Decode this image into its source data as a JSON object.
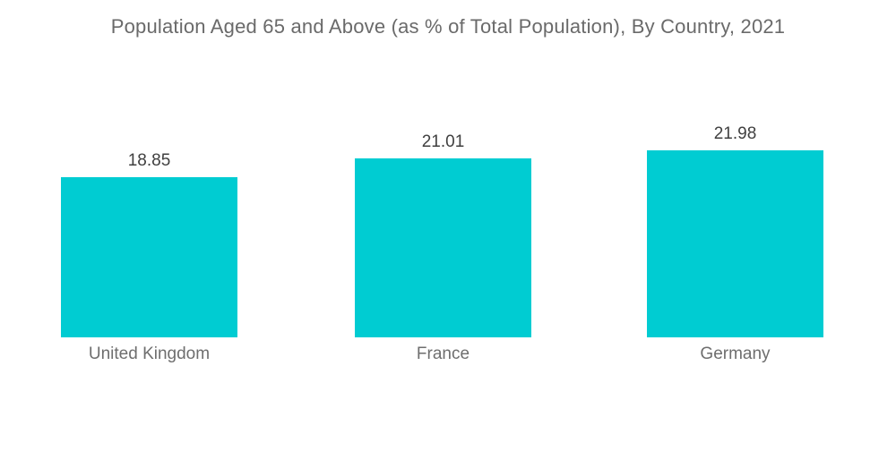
{
  "chart_data": {
    "type": "bar",
    "title": "Population Aged 65 and Above (as % of Total Population), By Country, 2021",
    "categories": [
      "United Kingdom",
      "France",
      "Germany"
    ],
    "values": [
      18.85,
      21.01,
      21.98
    ],
    "value_labels": [
      "18.85",
      "21.01",
      "21.98"
    ],
    "xlabel": "",
    "ylabel": "",
    "ylim": [
      0,
      25
    ],
    "grid": false,
    "legend": false,
    "axes_visible": false,
    "bar_color": "#00ccd2",
    "background_color": "#ffffff",
    "title_color": "#6a6a6a",
    "value_label_color": "#404040",
    "category_label_color": "#6e6e6e"
  }
}
